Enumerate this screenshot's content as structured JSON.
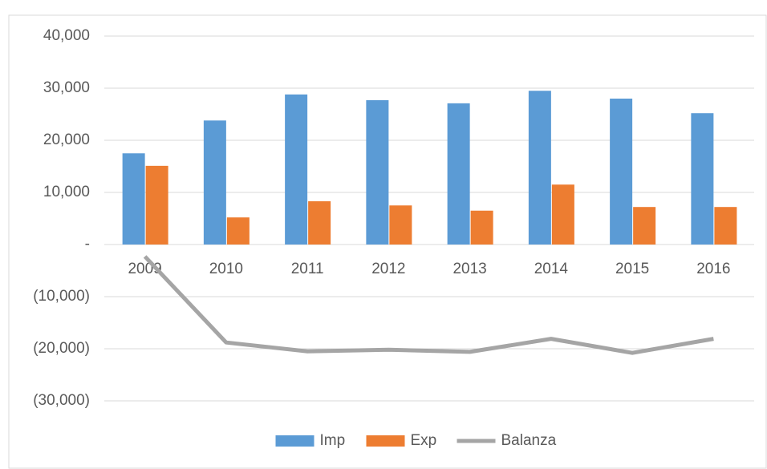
{
  "chart_data": {
    "type": "bar",
    "categories": [
      "2009",
      "2010",
      "2011",
      "2012",
      "2013",
      "2014",
      "2015",
      "2016"
    ],
    "series": [
      {
        "name": "Imp",
        "type": "bar",
        "color": "#5b9bd5",
        "values": [
          17500,
          23800,
          28800,
          27700,
          27100,
          29500,
          28000,
          25200
        ]
      },
      {
        "name": "Exp",
        "type": "bar",
        "color": "#ed7d31",
        "values": [
          15100,
          5200,
          8300,
          7500,
          6500,
          11500,
          7200,
          7200
        ]
      },
      {
        "name": "Balanza",
        "type": "line",
        "color": "#a5a5a5",
        "values": [
          -2300,
          -18800,
          -20500,
          -20200,
          -20600,
          -18100,
          -20800,
          -18100
        ]
      }
    ],
    "ylim": [
      -30000,
      40000
    ],
    "yticks": [
      {
        "value": -30000,
        "label": "(30,000)"
      },
      {
        "value": -20000,
        "label": "(20,000)"
      },
      {
        "value": -10000,
        "label": "(10,000)"
      },
      {
        "value": 0,
        "label": "-"
      },
      {
        "value": 10000,
        "label": "10,000"
      },
      {
        "value": 20000,
        "label": "20,000"
      },
      {
        "value": 30000,
        "label": "30,000"
      },
      {
        "value": 40000,
        "label": "40,000"
      }
    ],
    "grid": true,
    "legend": "bottom"
  }
}
